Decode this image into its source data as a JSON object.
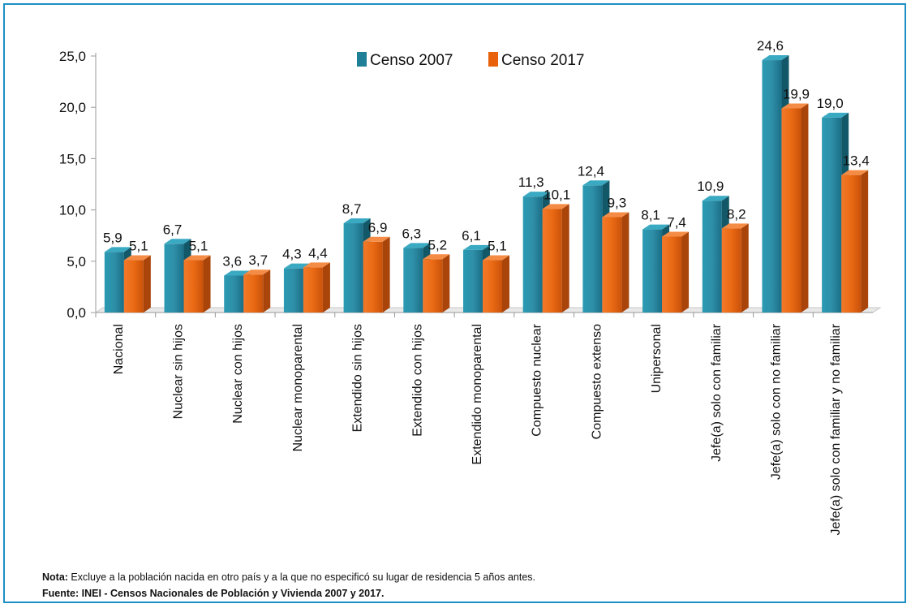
{
  "chart_data": {
    "type": "bar",
    "categories": [
      "Nacional",
      "Nuclear sin hijos",
      "Nuclear con hijos",
      "Nuclear monoparental",
      "Extendido sin hijos",
      "Extendido con hijos",
      "Extendido monoparental",
      "Compuesto nuclear",
      "Compuesto extenso",
      "Unipersonal",
      "Jefe(a) solo con familiar",
      "Jefe(a) solo con no familiar",
      "Jefe(a) solo con familiar y no familiar"
    ],
    "series": [
      {
        "name": "Censo 2007",
        "color": "#1f7f97",
        "values": [
          5.9,
          6.7,
          3.6,
          4.3,
          8.7,
          6.3,
          6.1,
          11.3,
          12.4,
          8.1,
          10.9,
          24.6,
          19.0
        ]
      },
      {
        "name": "Censo 2017",
        "color": "#e8620c",
        "values": [
          5.1,
          5.1,
          3.7,
          4.4,
          6.9,
          5.2,
          5.1,
          10.1,
          9.3,
          7.4,
          8.2,
          19.9,
          13.4
        ]
      }
    ],
    "ylim": [
      0,
      25
    ],
    "yticks": [
      "0,0",
      "5,0",
      "10,0",
      "15,0",
      "20,0",
      "25,0"
    ],
    "value_labels": [
      [
        "5,9",
        "6,7",
        "3,6",
        "4,3",
        "8,7",
        "6,3",
        "6,1",
        "11,3",
        "12,4",
        "8,1",
        "10,9",
        "24,6",
        "19,0"
      ],
      [
        "5,1",
        "5,1",
        "3,7",
        "4,4",
        "6,9",
        "5,2",
        "5,1",
        "10,1",
        "9,3",
        "7,4",
        "8,2",
        "19,9",
        "13,4"
      ]
    ],
    "legend_position": "top-center",
    "grid": false
  },
  "notes": {
    "nota_label": "Nota:",
    "nota_text": " Excluye a la población nacida en otro país y a la que no especificó su lugar de residencia 5 años antes.",
    "fuente_text": "Fuente: INEI - Censos Nacionales de Población y Vivienda 2007 y 2017."
  }
}
